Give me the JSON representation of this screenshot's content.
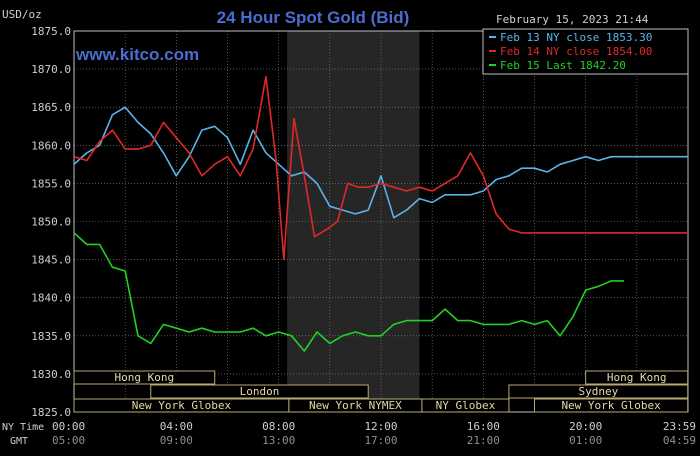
{
  "chart_data": {
    "type": "line",
    "title": "24 Hour Spot Gold (Bid)",
    "site": "www.kitco.com",
    "timestamp": "February 15, 2023 21:44",
    "y_unit": "USD/oz",
    "ylim": [
      1825,
      1875
    ],
    "y_ticks": [
      "1875.0",
      "1870.0",
      "1865.0",
      "1860.0",
      "1855.0",
      "1850.0",
      "1845.0",
      "1840.0",
      "1835.0",
      "1830.0",
      "1825.0"
    ],
    "x_row_labels": [
      "NY Time",
      "GMT"
    ],
    "x_ticks_ny": [
      "00:00",
      "04:00",
      "08:00",
      "12:00",
      "16:00",
      "20:00",
      "23:59"
    ],
    "x_ticks_gmt": [
      "05:00",
      "09:00",
      "13:00",
      "17:00",
      "21:00",
      "01:00",
      "04:59"
    ],
    "grid": true,
    "legend_placement": "top-right",
    "sessions": [
      {
        "label": "Hong Kong",
        "row": 0,
        "start": 0,
        "end": 5.5
      },
      {
        "label": "Hong Kong",
        "row": 0,
        "start": 20.0,
        "end": 23.99
      },
      {
        "label": "London",
        "row": 1,
        "start": 3.0,
        "end": 11.5
      },
      {
        "label": "Sydney",
        "row": 1,
        "start": 17.0,
        "end": 23.99
      },
      {
        "label": "New York Globex",
        "row": 2,
        "start": 0,
        "end": 8.4
      },
      {
        "label": "New York NYMEX",
        "row": 2,
        "start": 8.4,
        "end": 13.6
      },
      {
        "label": "NY Globex",
        "row": 2,
        "start": 13.6,
        "end": 17.0
      },
      {
        "label": "New York Globex",
        "row": 2,
        "start": 18.0,
        "end": 23.99
      }
    ],
    "nymex_shade": {
      "start": 8.33,
      "end": 13.5
    },
    "series": [
      {
        "name": "Feb 13 NY close 1853.30",
        "color": "#5ab4ea",
        "x": [
          0,
          0.5,
          1,
          1.5,
          2,
          2.5,
          3,
          3.5,
          4,
          4.5,
          5,
          5.5,
          6,
          6.5,
          7,
          7.5,
          8,
          8.5,
          9,
          9.5,
          10,
          10.5,
          11,
          11.5,
          12,
          12.5,
          13,
          13.5,
          14,
          14.5,
          15,
          15.5,
          16,
          16.5,
          17,
          17.5,
          18,
          18.5,
          19,
          19.5,
          20,
          20.5,
          21,
          21.5,
          22,
          22.5,
          23,
          23.5,
          24
        ],
        "values": [
          1857.5,
          1859,
          1860,
          1864,
          1865,
          1863,
          1861.5,
          1859,
          1856,
          1858.5,
          1862,
          1862.5,
          1861,
          1857.5,
          1862,
          1859,
          1857.5,
          1856,
          1856.5,
          1855,
          1852,
          1851.5,
          1851,
          1851.5,
          1856,
          1850.5,
          1851.5,
          1853,
          1852.5,
          1853.5,
          1853.5,
          1853.5,
          1854,
          1855.5,
          1856,
          1857,
          1857,
          1856.5,
          1857.5,
          1858,
          1858.5,
          1858,
          1858.5,
          1858.5,
          1858.5,
          1858.5,
          1858.5,
          1858.5,
          1858.5
        ]
      },
      {
        "name": "Feb 14 NY close 1854.00",
        "color": "#e02828",
        "x": [
          0,
          0.5,
          1,
          1.5,
          2,
          2.5,
          3,
          3.5,
          4,
          4.5,
          5,
          5.5,
          6,
          6.5,
          7,
          7.5,
          7.9,
          8.2,
          8.6,
          9.0,
          9.4,
          9.9,
          10.3,
          10.7,
          11.1,
          11.5,
          12,
          12.5,
          13,
          13.5,
          14,
          14.5,
          15,
          15.5,
          16,
          16.5,
          17,
          17.5,
          18,
          18.5,
          19,
          19.5,
          20,
          20.5,
          21,
          21.5,
          22,
          22.5,
          23,
          23.5,
          24
        ],
        "values": [
          1858.5,
          1858,
          1860.5,
          1862,
          1859.5,
          1859.5,
          1860,
          1863,
          1861,
          1859,
          1856,
          1857.5,
          1858.5,
          1856,
          1859.5,
          1869,
          1858,
          1845,
          1863.5,
          1856,
          1848,
          1849,
          1850,
          1855,
          1854.5,
          1854.5,
          1855,
          1854.5,
          1854,
          1854.5,
          1854,
          1855,
          1856,
          1859,
          1856,
          1851,
          1849,
          1848.5,
          1848.5,
          1848.5,
          1848.5,
          1848.5,
          1848.5,
          1848.5,
          1848.5,
          1848.5,
          1848.5,
          1848.5,
          1848.5,
          1848.5,
          1848.5
        ]
      },
      {
        "name": "Feb 15 Last 1842.20",
        "color": "#22d022",
        "x": [
          0,
          0.5,
          1,
          1.5,
          2,
          2.5,
          3,
          3.5,
          4,
          4.5,
          5,
          5.5,
          6,
          6.5,
          7,
          7.5,
          8,
          8.5,
          9,
          9.5,
          10,
          10.5,
          11,
          11.5,
          12,
          12.5,
          13,
          13.5,
          14,
          14.5,
          15,
          15.5,
          16,
          16.5,
          17,
          17.5,
          18,
          18.5,
          19,
          19.5,
          20,
          20.5,
          21,
          21.5
        ],
        "values": [
          1848.5,
          1847,
          1847,
          1844,
          1843.5,
          1835,
          1834,
          1836.5,
          1836,
          1835.5,
          1836,
          1835.5,
          1835.5,
          1835.5,
          1836,
          1835,
          1835.5,
          1835,
          1833,
          1835.5,
          1834,
          1835,
          1835.5,
          1835,
          1835,
          1836.5,
          1837,
          1837,
          1837,
          1838.5,
          1837,
          1837,
          1836.5,
          1836.5,
          1836.5,
          1837,
          1836.5,
          1837,
          1835,
          1837.5,
          1841,
          1841.5,
          1842.2,
          1842.2
        ]
      }
    ]
  }
}
